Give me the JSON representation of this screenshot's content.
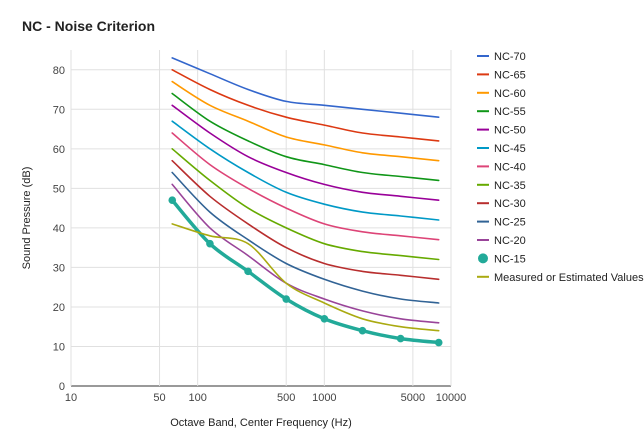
{
  "chart_data": {
    "type": "line",
    "title": "NC - Noise Criterion",
    "xlabel": "Octave Band, Center Frequency (Hz)",
    "ylabel": "Sound Pressure (dB)",
    "xscale": "log",
    "xlim": [
      10,
      10000
    ],
    "ylim": [
      0,
      85
    ],
    "xticks": [
      10,
      50,
      100,
      500,
      1000,
      5000,
      10000
    ],
    "yticks": [
      0,
      10,
      20,
      30,
      40,
      50,
      60,
      70,
      80
    ],
    "grid": true,
    "legend_position": "right",
    "x": [
      63,
      125,
      250,
      500,
      1000,
      2000,
      4000,
      8000
    ],
    "series": [
      {
        "name": "NC-70",
        "color": "#3366cc",
        "values": [
          83,
          79,
          75,
          72,
          71,
          70,
          69,
          68
        ]
      },
      {
        "name": "NC-65",
        "color": "#dc3912",
        "values": [
          80,
          75,
          71,
          68,
          66,
          64,
          63,
          62
        ]
      },
      {
        "name": "NC-60",
        "color": "#ff9900",
        "values": [
          77,
          71,
          67,
          63,
          61,
          59,
          58,
          57
        ]
      },
      {
        "name": "NC-55",
        "color": "#109618",
        "values": [
          74,
          67,
          62,
          58,
          56,
          54,
          53,
          52
        ]
      },
      {
        "name": "NC-50",
        "color": "#990099",
        "values": [
          71,
          64,
          58,
          54,
          51,
          49,
          48,
          47
        ]
      },
      {
        "name": "NC-45",
        "color": "#0099c6",
        "values": [
          67,
          60,
          54,
          49,
          46,
          44,
          43,
          42
        ]
      },
      {
        "name": "NC-40",
        "color": "#dd4477",
        "values": [
          64,
          56,
          50,
          45,
          41,
          39,
          38,
          37
        ]
      },
      {
        "name": "NC-35",
        "color": "#66aa00",
        "values": [
          60,
          52,
          45,
          40,
          36,
          34,
          33,
          32
        ]
      },
      {
        "name": "NC-30",
        "color": "#b82e2e",
        "values": [
          57,
          48,
          41,
          35,
          31,
          29,
          28,
          27
        ]
      },
      {
        "name": "NC-25",
        "color": "#316395",
        "values": [
          54,
          44,
          37,
          31,
          27,
          24,
          22,
          21
        ]
      },
      {
        "name": "NC-20",
        "color": "#994499",
        "values": [
          51,
          40,
          33,
          26,
          22,
          19,
          17,
          16
        ]
      },
      {
        "name": "NC-15",
        "color": "#22aa99",
        "values": [
          47,
          36,
          29,
          22,
          17,
          14,
          12,
          11
        ],
        "markers": true,
        "emphasis": true
      },
      {
        "name": "Measured or Estimated Values",
        "color": "#aaaa11",
        "values": [
          41,
          38,
          36,
          26,
          21,
          17,
          15,
          14
        ],
        "smooth": true
      }
    ]
  }
}
